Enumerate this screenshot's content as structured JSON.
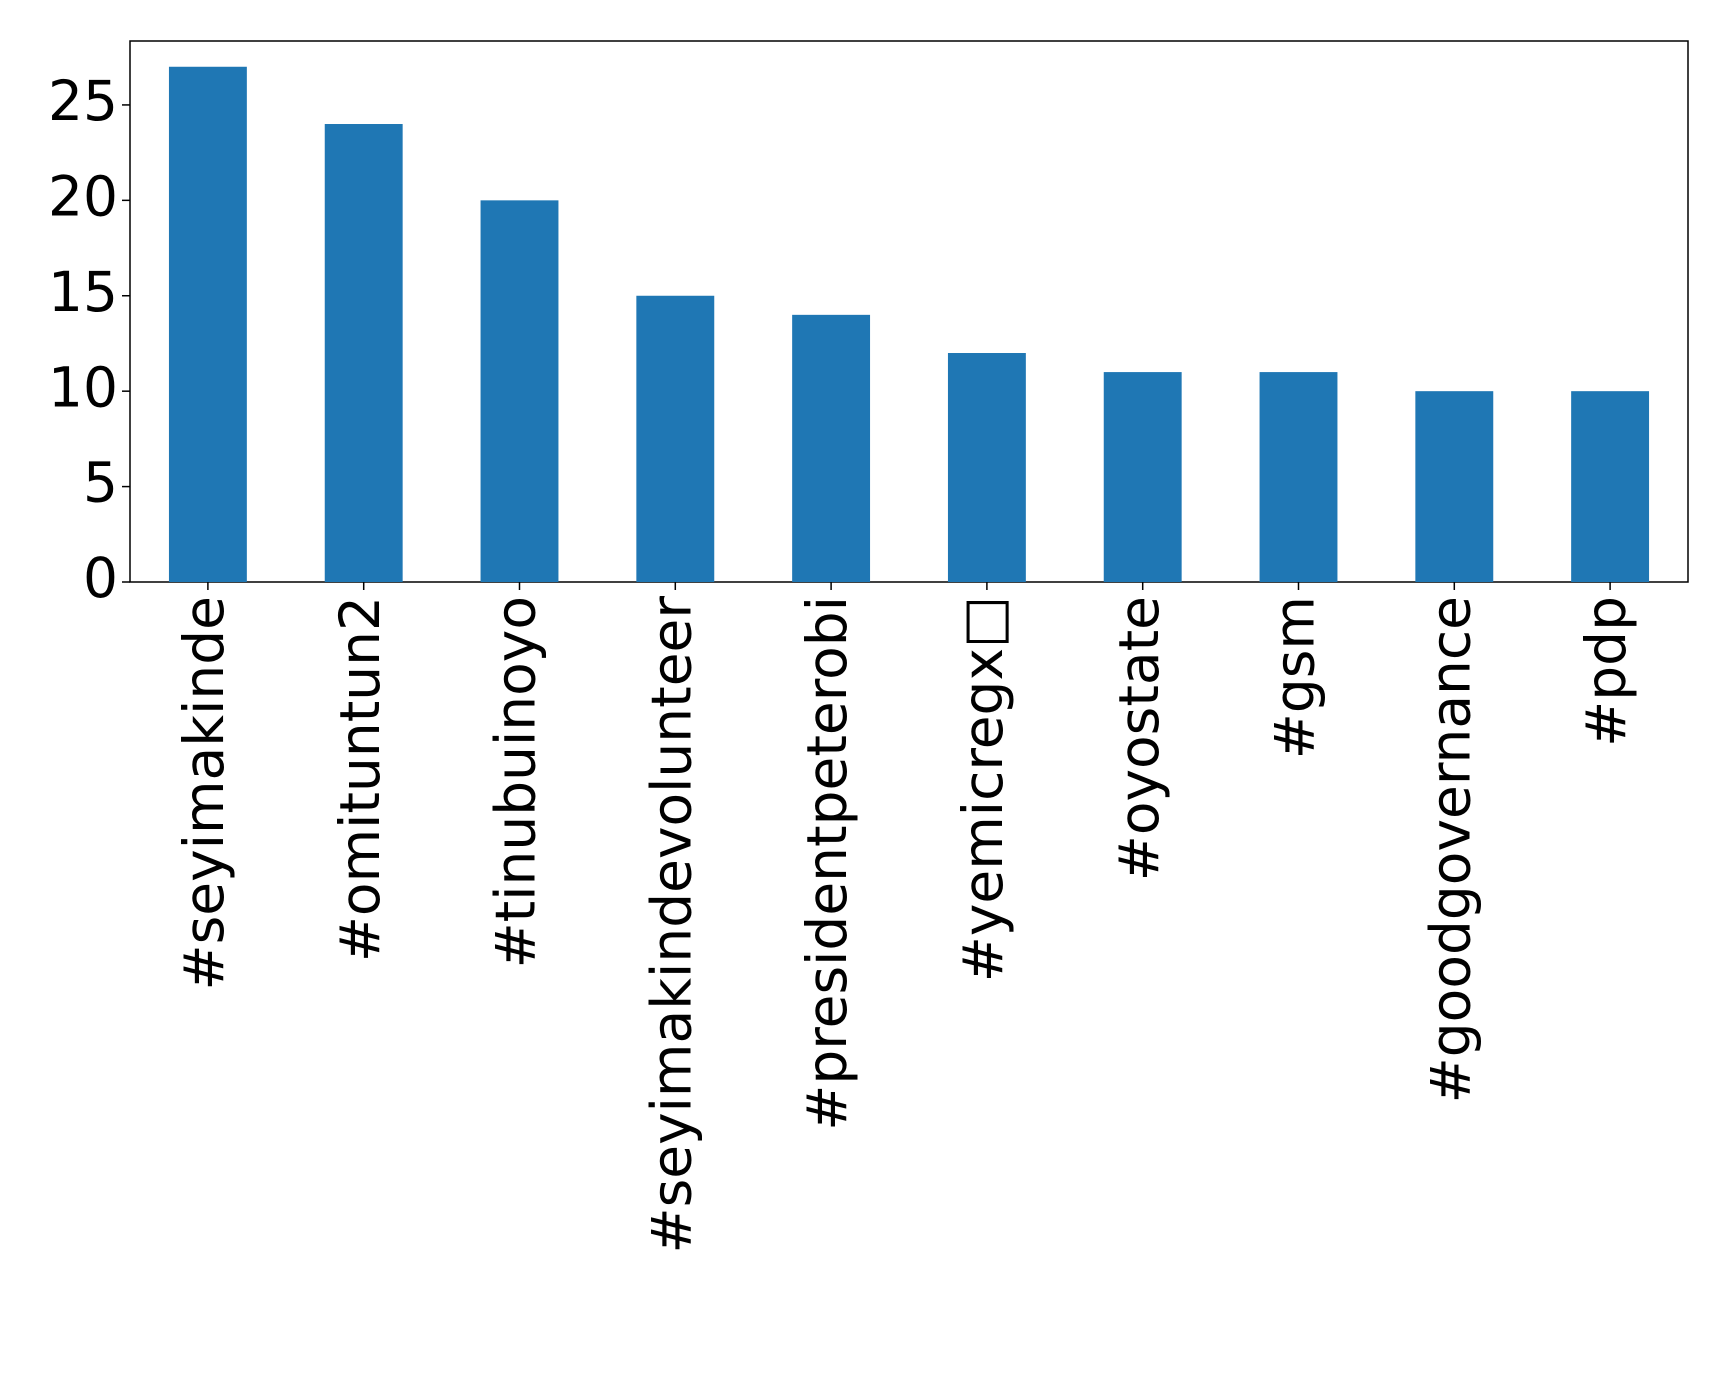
{
  "chart_data": {
    "type": "bar",
    "categories": [
      "#seyimakinde",
      "#omituntun2",
      "#tinubuinoyo",
      "#seyimakindevolunteer",
      "#presidentpeterobi",
      "#yemicregx□",
      "#oyostate",
      "#gsm",
      "#goodgovernance",
      "#pdp"
    ],
    "values": [
      27,
      24,
      20,
      15,
      14,
      12,
      11,
      11,
      10,
      10
    ],
    "color": "#1f77b4",
    "ylim": [
      0,
      28.35
    ],
    "yticks": [
      0,
      5,
      10,
      15,
      20,
      25
    ],
    "grid": false
  }
}
